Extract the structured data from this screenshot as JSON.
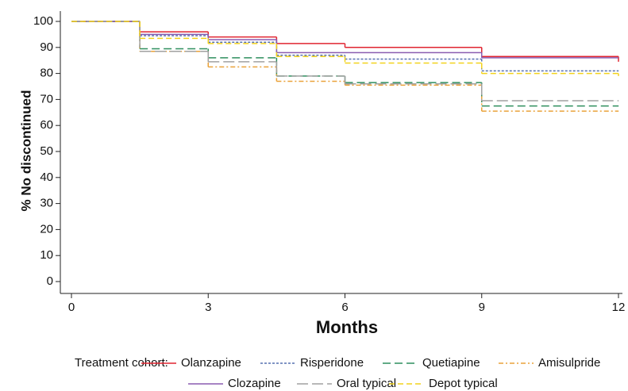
{
  "chart_data": {
    "type": "step",
    "xlabel": "Months",
    "ylabel": "% No discontinued",
    "x": [
      0,
      1.5,
      3,
      4.5,
      6,
      9,
      12
    ],
    "xlim": [
      0,
      12
    ],
    "xticks": [
      0,
      3,
      6,
      9,
      12
    ],
    "ylim": [
      0,
      100
    ],
    "yticks": [
      0,
      10,
      20,
      30,
      40,
      50,
      60,
      70,
      80,
      90,
      100
    ],
    "legend_title": "Treatment cohort:",
    "series": [
      {
        "name": "Olanzapine",
        "color": "#e02530",
        "values": [
          100,
          96,
          94,
          91.5,
          90,
          86.5,
          84.5
        ]
      },
      {
        "name": "Risperidone",
        "color": "#5670b0",
        "values": [
          100,
          94.5,
          92,
          87,
          85.5,
          81,
          81
        ]
      },
      {
        "name": "Quetiapine",
        "color": "#2f8f5e",
        "values": [
          100,
          89.5,
          86,
          79,
          76.5,
          67.5,
          67.5
        ]
      },
      {
        "name": "Amisulpride",
        "color": "#eaa23a",
        "values": [
          100,
          88.5,
          82.5,
          77,
          75.5,
          65.5,
          65.5
        ]
      },
      {
        "name": "Clozapine",
        "color": "#8a5cb0",
        "values": [
          100,
          95,
          93,
          88,
          88,
          86,
          86
        ]
      },
      {
        "name": "Oral typical",
        "color": "#a0a0a0",
        "values": [
          100,
          88.5,
          84.5,
          79,
          76,
          69.5,
          69.5
        ]
      },
      {
        "name": "Depot typical",
        "color": "#f2d21c",
        "values": [
          100,
          93.5,
          91.5,
          86.5,
          84,
          80,
          79
        ]
      }
    ]
  }
}
